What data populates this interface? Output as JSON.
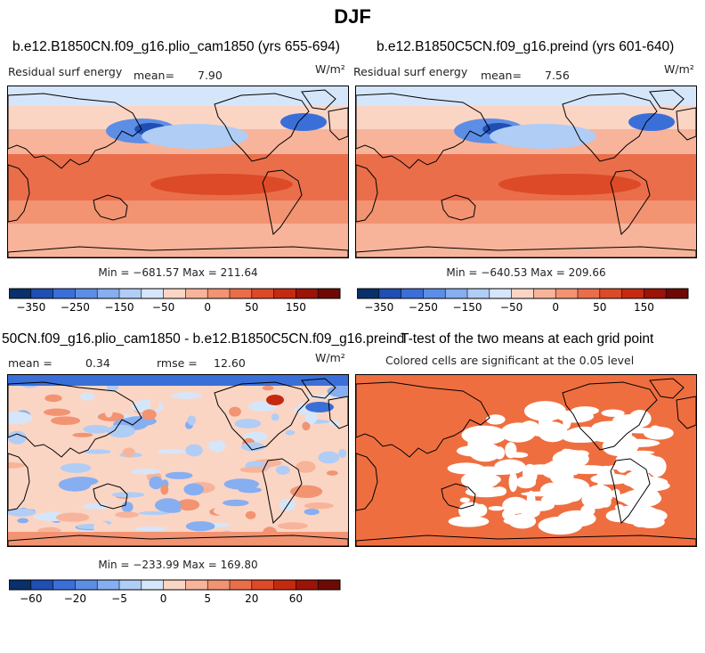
{
  "figure": {
    "title": "DJF"
  },
  "panels": {
    "p1": {
      "title": "b.e12.B1850CN.f09_g16.plio_cam1850 (yrs 655-694)",
      "left_label": "Residual surf energy",
      "mean_label": "mean=",
      "mean_value": "7.90",
      "units": "W/m²",
      "min_max": "Min = −681.57 Max = 211.64"
    },
    "p2": {
      "title": "b.e12.B1850C5CN.f09_g16.preind (yrs 601-640)",
      "left_label": "Residual surf energy",
      "mean_label": "mean=",
      "mean_value": "7.56",
      "units": "W/m²",
      "min_max": "Min = −640.53 Max = 209.66"
    },
    "p3": {
      "title": "50CN.f09_g16.plio_cam1850 - b.e12.B1850C5CN.f09_g16.preind",
      "mean_label": "mean =",
      "mean_value": "0.34",
      "rmse_label": "rmse =",
      "rmse_value": "12.60",
      "units": "W/m²",
      "min_max": "Min = −233.99 Max = 169.80"
    },
    "p4": {
      "title": "T-test of the two means at each grid point",
      "subtitle": "Colored cells are significant at the 0.05 level"
    }
  },
  "colorbars": {
    "top": {
      "ticks": [
        "−350",
        "−250",
        "−150",
        "−50",
        "0",
        "50",
        "150"
      ],
      "colors": [
        "#08306b",
        "#1f4fb4",
        "#3b6fd8",
        "#5c8ee6",
        "#86aef0",
        "#b0cdf5",
        "#d6e6fa",
        "#fbd5c4",
        "#f7b49a",
        "#f29372",
        "#ea6e4a",
        "#dd4a27",
        "#c52a10",
        "#9c1308",
        "#6e0a05"
      ]
    },
    "diff": {
      "ticks": [
        "−60",
        "−20",
        "−5",
        "0",
        "5",
        "20",
        "60"
      ],
      "colors": [
        "#08306b",
        "#1f4fb4",
        "#3b6fd8",
        "#5c8ee6",
        "#86aef0",
        "#b0cdf5",
        "#d6e6fa",
        "#fbd5c4",
        "#f7b49a",
        "#f29372",
        "#ea6e4a",
        "#dd4a27",
        "#c52a10",
        "#9c1308",
        "#6e0a05"
      ]
    }
  },
  "chart_data": [
    {
      "type": "heatmap",
      "title": "b.e12.B1850CN.f09_g16.plio_cam1850 (yrs 655-694)",
      "variable": "Residual surf energy",
      "units": "W/m²",
      "mean": 7.9,
      "min": -681.57,
      "max": 211.64,
      "colorbar_ticks": [
        -350,
        -250,
        -150,
        -50,
        0,
        50,
        150
      ]
    },
    {
      "type": "heatmap",
      "title": "b.e12.B1850C5CN.f09_g16.preind (yrs 601-640)",
      "variable": "Residual surf energy",
      "units": "W/m²",
      "mean": 7.56,
      "min": -640.53,
      "max": 209.66,
      "colorbar_ticks": [
        -350,
        -250,
        -150,
        -50,
        0,
        50,
        150
      ]
    },
    {
      "type": "heatmap",
      "title": "50CN.f09_g16.plio_cam1850 - b.e12.B1850C5CN.f09_g16.preind",
      "units": "W/m²",
      "mean": 0.34,
      "rmse": 12.6,
      "min": -233.99,
      "max": 169.8,
      "colorbar_ticks": [
        -60,
        -20,
        -5,
        0,
        5,
        20,
        60
      ]
    },
    {
      "type": "heatmap",
      "title": "T-test of the two means at each grid point",
      "subtitle": "Colored cells are significant at the 0.05 level",
      "significance_level": 0.05
    }
  ]
}
